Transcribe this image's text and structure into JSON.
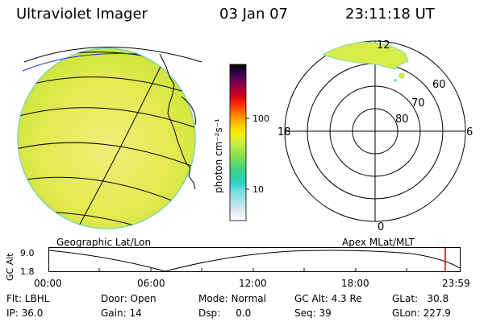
{
  "header": {
    "title": "Ultraviolet Imager",
    "date": "03 Jan 07",
    "time": "23:11:18 UT"
  },
  "colorbar": {
    "unit_label": "photon cm⁻²s⁻¹",
    "ticks": [
      "100",
      "10"
    ],
    "colors": [
      "#ffffff",
      "#d8e6ee",
      "#7fdfe0",
      "#2fd0c8",
      "#3ad08a",
      "#8ce24a",
      "#cfee44",
      "#f6f000",
      "#ffc000",
      "#ff7f00",
      "#ff3000",
      "#d0001a",
      "#8c0046",
      "#40005a",
      "#000000"
    ]
  },
  "left_panel": {
    "caption": "Geographic Lat/Lon",
    "disk_color": "#dde84a"
  },
  "right_panel": {
    "caption": "Apex MLat/MLT",
    "mlt_labels": {
      "top": "12",
      "left": "18",
      "right": "6",
      "bottom": "0"
    },
    "mlat_labels": [
      "60",
      "70",
      "80"
    ]
  },
  "altitude_plot": {
    "ylabel": "GC Alt",
    "yticks": [
      "9.0",
      "1.8"
    ],
    "xticks": [
      "00:00",
      "06:00",
      "12:00",
      "18:00",
      "23:59"
    ],
    "marker_color": "#d00000"
  },
  "status": {
    "flt": "Flt: LBHL",
    "ip": "IP: 36.0",
    "door": "Door: Open",
    "gain": "Gain: 14",
    "mode": "Mode: Normal",
    "dsp": "Dsp:     0.0",
    "gc_alt": "GC Alt: 4.3 Re",
    "seq": "Seq: 39",
    "glat": "GLat:   30.8",
    "glon": "GLon: 227.9"
  }
}
